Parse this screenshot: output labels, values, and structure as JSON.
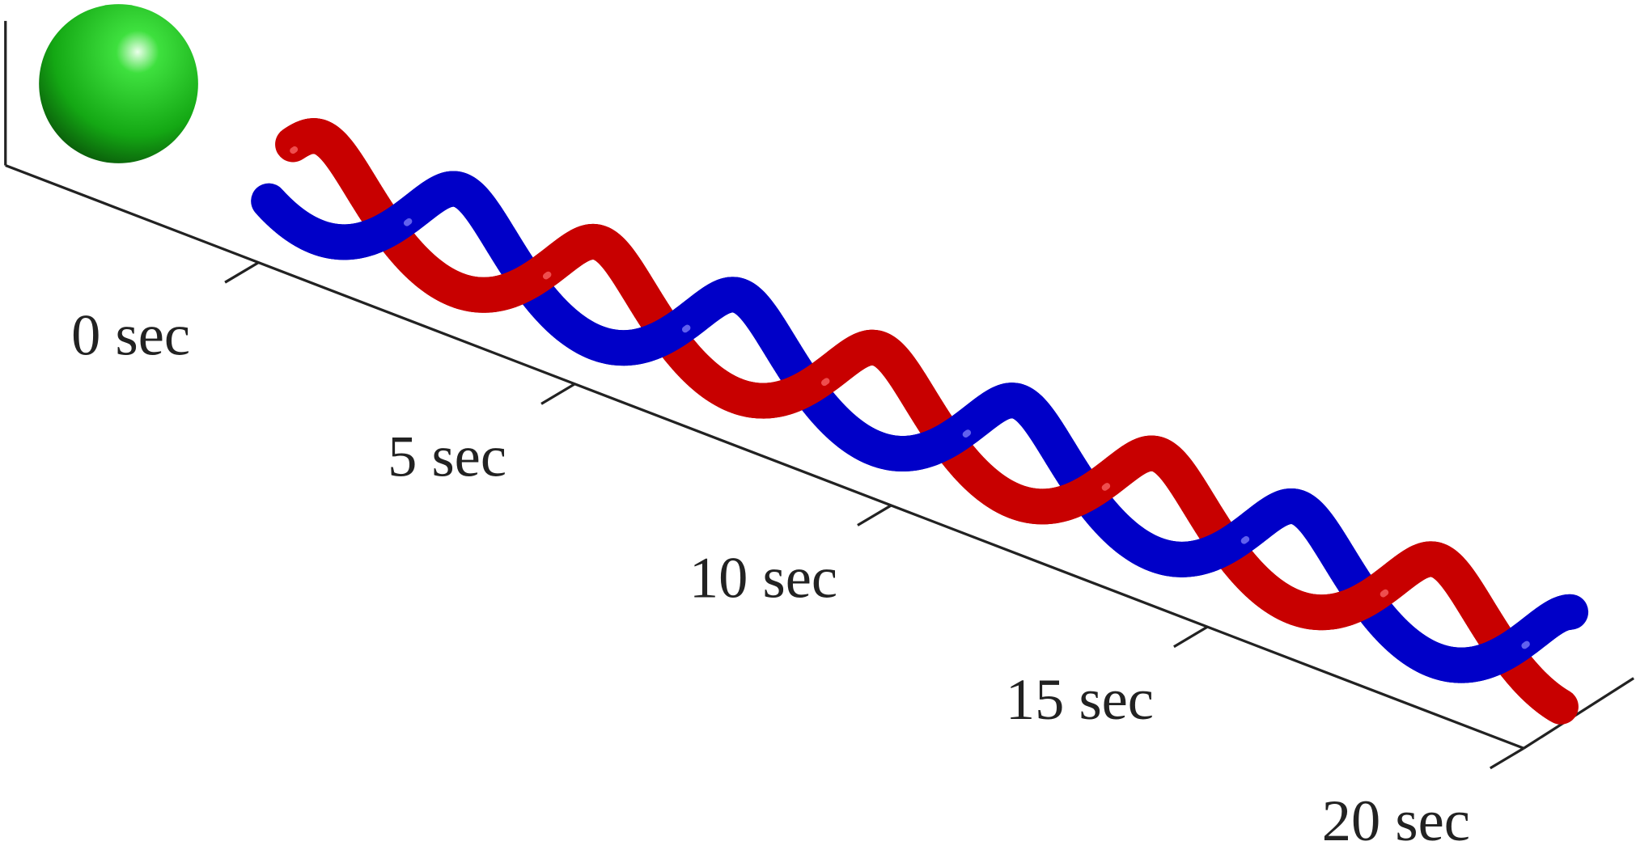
{
  "chart_data": {
    "type": "twisted-tubes",
    "xlim": [
      -4,
      20
    ],
    "xticks": [
      {
        "value": 0,
        "label": "0 sec"
      },
      {
        "value": 5,
        "label": "5 sec"
      },
      {
        "value": 10,
        "label": "10 sec"
      },
      {
        "value": 15,
        "label": "15 sec"
      },
      {
        "value": 20,
        "label": "20 sec"
      }
    ]
  }
}
